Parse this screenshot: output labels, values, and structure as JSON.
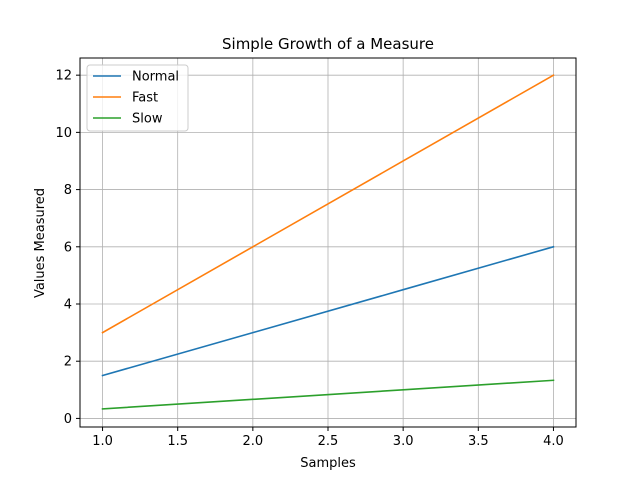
{
  "chart_data": {
    "type": "line",
    "title": "Simple Growth of a Measure",
    "xlabel": "Samples",
    "ylabel": "Values Measured",
    "xlim": [
      0.85,
      4.15
    ],
    "ylim": [
      -0.3,
      12.6
    ],
    "xticks": [
      1.0,
      1.5,
      2.0,
      2.5,
      3.0,
      3.5,
      4.0
    ],
    "xtick_labels": [
      "1.0",
      "1.5",
      "2.0",
      "2.5",
      "3.0",
      "3.5",
      "4.0"
    ],
    "yticks": [
      0,
      2,
      4,
      6,
      8,
      10,
      12
    ],
    "ytick_labels": [
      "0",
      "2",
      "4",
      "6",
      "8",
      "10",
      "12"
    ],
    "grid": true,
    "legend_position": "top-left",
    "x": [
      1,
      2,
      3,
      4
    ],
    "series": [
      {
        "name": "Normal",
        "color": "#1f77b4",
        "values": [
          1.5,
          3.0,
          4.5,
          6.0
        ]
      },
      {
        "name": "Fast",
        "color": "#ff7f0e",
        "values": [
          3.0,
          6.0,
          9.0,
          12.0
        ]
      },
      {
        "name": "Slow",
        "color": "#2ca02c",
        "values": [
          0.333,
          0.667,
          1.0,
          1.333
        ]
      }
    ]
  }
}
